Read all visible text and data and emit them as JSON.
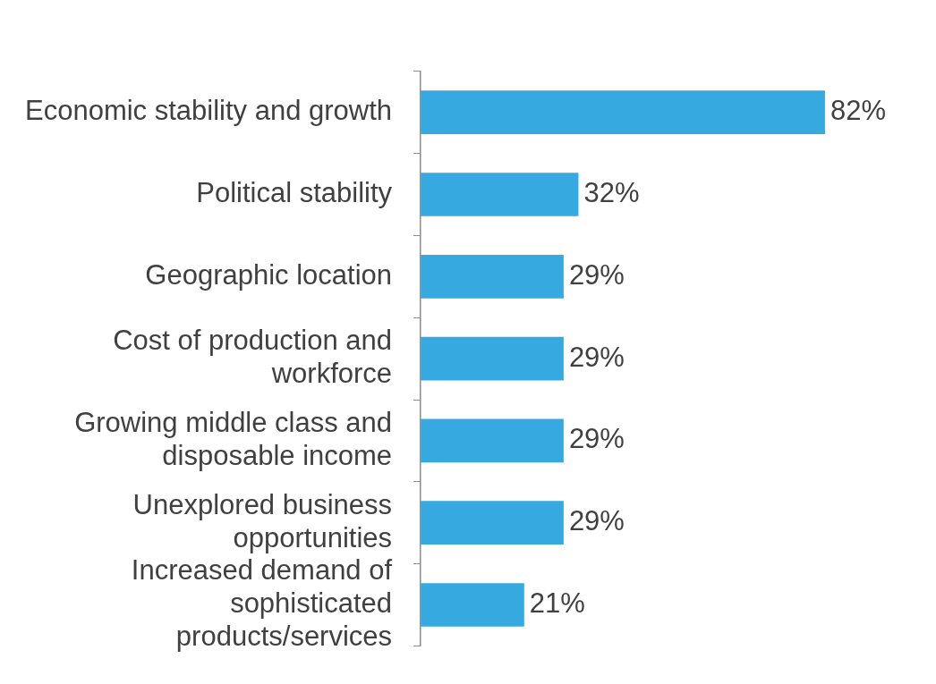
{
  "chart_data": {
    "type": "bar",
    "orientation": "horizontal",
    "categories": [
      "Economic stability and growth",
      "Political stability",
      "Geographic location",
      "Cost of production and workforce",
      "Growing middle class and disposable income",
      "Unexplored business opportunities",
      "Increased demand of sophisticated products/services"
    ],
    "values": [
      82,
      32,
      29,
      29,
      29,
      29,
      21
    ],
    "value_labels": [
      "82%",
      "32%",
      "29%",
      "29%",
      "29%",
      "29%",
      "21%"
    ],
    "color": "#36a9e0",
    "tick_labels": "y"
  }
}
